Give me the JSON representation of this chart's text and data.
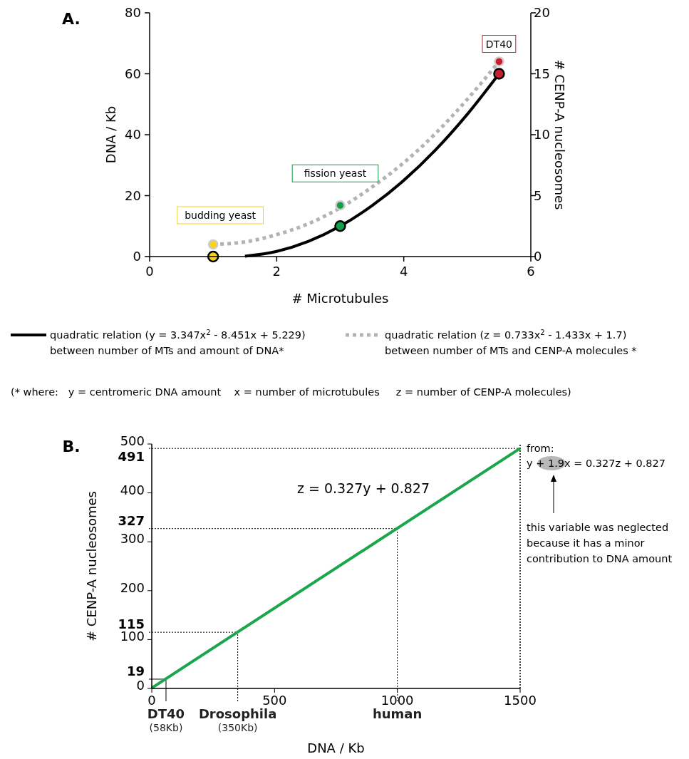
{
  "chart_data": [
    {
      "type": "line",
      "title": "A.",
      "xlabel": "# Microtubules",
      "ylabel": "DNA / Kb",
      "y2label": "# CENP-A nucleosomes",
      "xlim": [
        0,
        6
      ],
      "xticks": [
        0,
        2,
        4,
        6
      ],
      "ylim": [
        0,
        80
      ],
      "yticks": [
        0,
        20,
        40,
        60,
        80
      ],
      "y2lim": [
        0,
        20
      ],
      "y2ticks": [
        0,
        5,
        10,
        15,
        20
      ],
      "legend": "bottom",
      "series": [
        {
          "name": "quadratic relation (y = 3.347x$^{2}$ - 8.451x + 5.229)\nbetween number of MTs and amount of DNA*",
          "color": "#000000",
          "line_style": "solid",
          "x": [
            1.5,
            2,
            2.5,
            3,
            3.5,
            4,
            4.5,
            5,
            5.5
          ],
          "values": [
            0.1,
            1.7,
            5,
            10,
            16.7,
            25,
            35,
            46.7,
            60
          ]
        },
        {
          "name": "quadratic relation (z = 0.733x$^{2}$ - 1.433x + 1.7)\nbetween number of MTs and CENP-A molecules *",
          "color": "#b3b3b3",
          "line_style": "dotted",
          "axis": "y2",
          "x": [
            1,
            1.5,
            2,
            2.5,
            3,
            3.5,
            4,
            4.5,
            5,
            5.5
          ],
          "values": [
            1,
            1.2,
            1.8,
            2.7,
            4,
            5.7,
            7.7,
            10.1,
            12.9,
            16
          ]
        },
        {
          "type": "scatter",
          "marker": "circle",
          "x": [
            1,
            3,
            5.5
          ],
          "values": [
            0,
            10,
            60
          ],
          "colors": [
            "#f7d417",
            "#12a04a",
            "#c4202f"
          ]
        },
        {
          "type": "scatter",
          "marker": "circle",
          "axis": "y2",
          "x": [
            1,
            3,
            5.5
          ],
          "values": [
            1,
            4.2,
            16
          ],
          "colors": [
            "#f7d417",
            "#12a04a",
            "#c4202f"
          ]
        }
      ],
      "annotations": [
        "budding yeast",
        "fission yeast",
        "DT40",
        "(* where:   y = centromeric DNA amount    x = number of microtubules     z = number of CENP-A molecules)"
      ]
    },
    {
      "type": "line",
      "title": "B.",
      "xlabel": "DNA / Kb",
      "ylabel": "# CENP-A nucleosomes",
      "xlim": [
        0,
        1500
      ],
      "xticks": [
        0,
        500,
        1000,
        1500
      ],
      "ylim": [
        0,
        500
      ],
      "yticks": [
        0,
        100,
        200,
        300,
        400,
        500
      ],
      "series": [
        {
          "color": "#1aa64a",
          "line_style": "solid",
          "x": [
            0,
            1500
          ],
          "values": [
            1,
            491
          ]
        }
      ],
      "ref_lines": [
        {
          "axis": "x",
          "value": 58,
          "label": "DT40\n(58Kb)",
          "line_style": "solid",
          "color": "#000000"
        },
        {
          "axis": "x",
          "value": 350,
          "label": "Drosophila\n(350Kb)",
          "line_style": "dotted",
          "color": "#000000"
        },
        {
          "axis": "x",
          "value": 1000,
          "label": "human",
          "line_style": "dotted",
          "color": "#000000"
        },
        {
          "axis": "x",
          "value": 1500,
          "label": null,
          "line_style": "dotted",
          "color": "#000000"
        },
        {
          "axis": "y",
          "value": 19,
          "label": "19",
          "line_style": "solid",
          "color": "#000000"
        },
        {
          "axis": "y",
          "value": 115,
          "label": "115",
          "line_style": "dotted",
          "color": "#000000"
        },
        {
          "axis": "y",
          "value": 327,
          "label": "327",
          "line_style": "dotted",
          "color": "#000000"
        },
        {
          "axis": "y",
          "value": 491,
          "label": "491",
          "line_style": "dotted",
          "color": "#000000"
        }
      ],
      "annotations": [
        "z = 0.327y + 0.827",
        "from:",
        "y + 1.9x = 0.327z + 0.827",
        "this variable was neglected\nbecause it has a minor\ncontribution to DNA amount"
      ]
    }
  ]
}
